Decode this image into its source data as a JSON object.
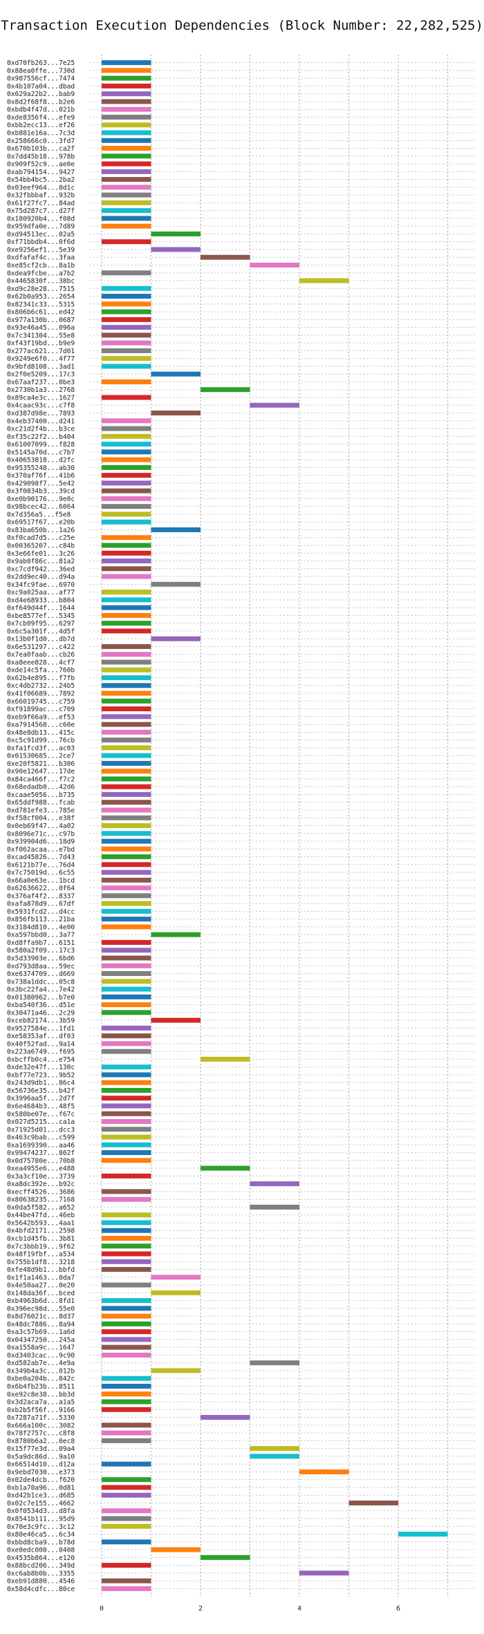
{
  "chart_data": {
    "type": "bar",
    "orientation": "horizontal",
    "title": "Transaction Execution Dependencies (Block Number: 22,282,525)",
    "xlabel": "",
    "ylabel": "",
    "xlim": [
      0,
      7.5
    ],
    "xticks": [
      0,
      2,
      4,
      6
    ],
    "grid": true,
    "palette": [
      "#1f77b4",
      "#ff7f0e",
      "#2ca02c",
      "#d62728",
      "#9467bd",
      "#8c564b",
      "#e377c2",
      "#7f7f7f",
      "#bcbd22",
      "#17becf"
    ],
    "transactions": [
      {
        "tx": "0xd70fb263...7e25",
        "start": 0
      },
      {
        "tx": "0x88ea0ffe...730d",
        "start": 0
      },
      {
        "tx": "0x987556cf...7474",
        "start": 0
      },
      {
        "tx": "0x4b107a04...dbad",
        "start": 0
      },
      {
        "tx": "0x629a22b2...bab9",
        "start": 0
      },
      {
        "tx": "0x8d2f68f8...b2e6",
        "start": 0
      },
      {
        "tx": "0xbdb4f47d...021b",
        "start": 0
      },
      {
        "tx": "0xde8356f4...efe9",
        "start": 0
      },
      {
        "tx": "0xbb2ecc13...ef26",
        "start": 0
      },
      {
        "tx": "0xb881e16a...7c3d",
        "start": 0
      },
      {
        "tx": "0x258666c0...3fd7",
        "start": 0
      },
      {
        "tx": "0x670b103b...ca2f",
        "start": 0
      },
      {
        "tx": "0x7dd45b18...978b",
        "start": 0
      },
      {
        "tx": "0x909f52c9...ae0e",
        "start": 0
      },
      {
        "tx": "0xab794154...9427",
        "start": 0
      },
      {
        "tx": "0x54bb4bc5...2ba2",
        "start": 0
      },
      {
        "tx": "0x03eef964...0d1c",
        "start": 0
      },
      {
        "tx": "0x32fbbbaf...932b",
        "start": 0
      },
      {
        "tx": "0x61f27fc7...84ad",
        "start": 0
      },
      {
        "tx": "0x75d287c7...d27f",
        "start": 0
      },
      {
        "tx": "0x180920b4...f08d",
        "start": 0
      },
      {
        "tx": "0x959dfa0e...7d89",
        "start": 0
      },
      {
        "tx": "0xd94513ec...02a5",
        "start": 1
      },
      {
        "tx": "0xf71bbdb4...0f6d",
        "start": 0
      },
      {
        "tx": "0xe9256ef1...5e39",
        "start": 1
      },
      {
        "tx": "0xdfafaf4c...3faa",
        "start": 2
      },
      {
        "tx": "0xe85cf2cb...8a1b",
        "start": 3
      },
      {
        "tx": "0xdea9fcbe...a7b2",
        "start": 0
      },
      {
        "tx": "0x4465830f...38bc",
        "start": 4
      },
      {
        "tx": "0xd9c28e28...7515",
        "start": 0
      },
      {
        "tx": "0x62b0a953...2654",
        "start": 0
      },
      {
        "tx": "0x82341c33...5315",
        "start": 0
      },
      {
        "tx": "0x806b6c61...ed42",
        "start": 0
      },
      {
        "tx": "0x977a130b...0687",
        "start": 0
      },
      {
        "tx": "0x93e46a45...096a",
        "start": 0
      },
      {
        "tx": "0x7c341304...55e8",
        "start": 0
      },
      {
        "tx": "0xf43f19bd...b9e9",
        "start": 0
      },
      {
        "tx": "0x277ac621...7d01",
        "start": 0
      },
      {
        "tx": "0x9249e6f0...4f77",
        "start": 0
      },
      {
        "tx": "0x9bfd8108...3ad1",
        "start": 0
      },
      {
        "tx": "0x2f0e5209...17c3",
        "start": 1
      },
      {
        "tx": "0x67aaf237...0be3",
        "start": 0
      },
      {
        "tx": "0x2730b1a3...2768",
        "start": 2
      },
      {
        "tx": "0x89ca4e3c...1627",
        "start": 0
      },
      {
        "tx": "0x4caac93c...c7f8",
        "start": 3
      },
      {
        "tx": "0xd387d98e...7893",
        "start": 1
      },
      {
        "tx": "0x4eb37400...d241",
        "start": 0
      },
      {
        "tx": "0xc21d2f4b...b3ce",
        "start": 0
      },
      {
        "tx": "0xf35c22f2...b404",
        "start": 0
      },
      {
        "tx": "0x61007099...f828",
        "start": 0
      },
      {
        "tx": "0x5145a70d...c7b7",
        "start": 0
      },
      {
        "tx": "0x40653818...d2fc",
        "start": 0
      },
      {
        "tx": "0x95355248...ab30",
        "start": 0
      },
      {
        "tx": "0x370af76f...41b6",
        "start": 0
      },
      {
        "tx": "0x429098f7...5e42",
        "start": 0
      },
      {
        "tx": "0x3f0834b3...39cd",
        "start": 0
      },
      {
        "tx": "0xe0b90176...9e0c",
        "start": 0
      },
      {
        "tx": "0x98bcec42...6064",
        "start": 0
      },
      {
        "tx": "0x7d356a5...f5e8",
        "start": 0
      },
      {
        "tx": "0x69517f67...e20b",
        "start": 0
      },
      {
        "tx": "0x83ba650b...1a26",
        "start": 1
      },
      {
        "tx": "0xf0cad7d5...c25e",
        "start": 0
      },
      {
        "tx": "0x00365207...c84b",
        "start": 0
      },
      {
        "tx": "0x3e66fe01...3c26",
        "start": 0
      },
      {
        "tx": "0x9ab0f86c...81a2",
        "start": 0
      },
      {
        "tx": "0xc7cdf942...36ed",
        "start": 0
      },
      {
        "tx": "0x2dd9ec40...d94a",
        "start": 0
      },
      {
        "tx": "0x34fc9fae...6970",
        "start": 1
      },
      {
        "tx": "0xc9a025aa...af77",
        "start": 0
      },
      {
        "tx": "0xd4e68933...b804",
        "start": 0
      },
      {
        "tx": "0xf649d44f...1644",
        "start": 0
      },
      {
        "tx": "0xbe8577ef...5345",
        "start": 0
      },
      {
        "tx": "0x7cb09f95...6297",
        "start": 0
      },
      {
        "tx": "0x6c5a301f...4d5f",
        "start": 0
      },
      {
        "tx": "0x13b0f1d0...db7d",
        "start": 1
      },
      {
        "tx": "0x6e531297...c422",
        "start": 0
      },
      {
        "tx": "0x7ea0faab...cb26",
        "start": 0
      },
      {
        "tx": "0xa8eee828...4cf7",
        "start": 0
      },
      {
        "tx": "0xde14c5fa...760b",
        "start": 0
      },
      {
        "tx": "0x62b4e895...f7fb",
        "start": 0
      },
      {
        "tx": "0xc4db2732...24b5",
        "start": 0
      },
      {
        "tx": "0x41f06689...7892",
        "start": 0
      },
      {
        "tx": "0x66019745...c759",
        "start": 0
      },
      {
        "tx": "0xf91899ac...c709",
        "start": 0
      },
      {
        "tx": "0xeb9f66a9...ef53",
        "start": 0
      },
      {
        "tx": "0xa7914568...c60e",
        "start": 0
      },
      {
        "tx": "0x48e8db13...415c",
        "start": 0
      },
      {
        "tx": "0xc5c91d99...76cb",
        "start": 0
      },
      {
        "tx": "0xfa1fcd3f...ac03",
        "start": 0
      },
      {
        "tx": "0x01530685...2ce7",
        "start": 0
      },
      {
        "tx": "0xe20f5821...b306",
        "start": 0
      },
      {
        "tx": "0x90e12647...17de",
        "start": 0
      },
      {
        "tx": "0x84ca466f...f7c2",
        "start": 0
      },
      {
        "tx": "0x68edadb0...42d6",
        "start": 0
      },
      {
        "tx": "0xcaae5056...b735",
        "start": 0
      },
      {
        "tx": "0x65ddf988...fcab",
        "start": 0
      },
      {
        "tx": "0xd781efe3...785e",
        "start": 0
      },
      {
        "tx": "0xf58cf004...e38f",
        "start": 0
      },
      {
        "tx": "0x0eb69f47...4a02",
        "start": 0
      },
      {
        "tx": "0x8096e71c...c97b",
        "start": 0
      },
      {
        "tx": "0x939904d6...18d9",
        "start": 0
      },
      {
        "tx": "0xf062acaa...e7bd",
        "start": 0
      },
      {
        "tx": "0xcad45826...7d43",
        "start": 0
      },
      {
        "tx": "0x6121b77e...76d4",
        "start": 0
      },
      {
        "tx": "0x7c75019d...6c55",
        "start": 0
      },
      {
        "tx": "0x66a0e63e...1bcd",
        "start": 0
      },
      {
        "tx": "0x62636622...0f64",
        "start": 0
      },
      {
        "tx": "0x376af4f2...8337",
        "start": 0
      },
      {
        "tx": "0xafa878d9...67df",
        "start": 0
      },
      {
        "tx": "0x5931fcd2...d4cc",
        "start": 0
      },
      {
        "tx": "0x856fb113...21ba",
        "start": 0
      },
      {
        "tx": "0x3184d810...4e00",
        "start": 0
      },
      {
        "tx": "0xa597bbd0...3a77",
        "start": 1
      },
      {
        "tx": "0xd8ffa9b7...6151",
        "start": 0
      },
      {
        "tx": "0x580a2f09...17c3",
        "start": 0
      },
      {
        "tx": "0x5d33903e...6bd6",
        "start": 0
      },
      {
        "tx": "0xd793d8aa...59ec",
        "start": 0
      },
      {
        "tx": "0xe6374709...d669",
        "start": 0
      },
      {
        "tx": "0x738a1ddc...05c8",
        "start": 0
      },
      {
        "tx": "0x3bc22fa4...7e42",
        "start": 0
      },
      {
        "tx": "0x01380962...b7e0",
        "start": 0
      },
      {
        "tx": "0xba540f36...d51e",
        "start": 0
      },
      {
        "tx": "0x30471a46...2c29",
        "start": 0
      },
      {
        "tx": "0xceb82174...3b59",
        "start": 1
      },
      {
        "tx": "0x9527584e...1fd1",
        "start": 0
      },
      {
        "tx": "0xe58353af...df03",
        "start": 0
      },
      {
        "tx": "0x40f52fad...9a14",
        "start": 0
      },
      {
        "tx": "0x223a6749...f695",
        "start": 0
      },
      {
        "tx": "0xbcffb0c4...e754",
        "start": 2
      },
      {
        "tx": "0xde32e47f...130c",
        "start": 0
      },
      {
        "tx": "0xbf77e723...9b52",
        "start": 0
      },
      {
        "tx": "0x243d9db1...86c4",
        "start": 0
      },
      {
        "tx": "0x56736e35...b42f",
        "start": 0
      },
      {
        "tx": "0x3996aa5f...2d7f",
        "start": 0
      },
      {
        "tx": "0x6e4684b3...48f5",
        "start": 0
      },
      {
        "tx": "0x580be07e...f67c",
        "start": 0
      },
      {
        "tx": "0x027d5215...ca1a",
        "start": 0
      },
      {
        "tx": "0x71925d01...dcc3",
        "start": 0
      },
      {
        "tx": "0x463c9bab...c599",
        "start": 0
      },
      {
        "tx": "0xa1699390...aa46",
        "start": 0
      },
      {
        "tx": "0x99474237...862f",
        "start": 0
      },
      {
        "tx": "0x0d75780e...70b8",
        "start": 0
      },
      {
        "tx": "0xea4955e6...e488",
        "start": 2
      },
      {
        "tx": "0x3a3cf10e...3739",
        "start": 0
      },
      {
        "tx": "0xa8dc392e...b92c",
        "start": 3
      },
      {
        "tx": "0xecff4526...3686",
        "start": 0
      },
      {
        "tx": "0x80638235...7168",
        "start": 0
      },
      {
        "tx": "0x0da5f582...a652",
        "start": 3
      },
      {
        "tx": "0x44be47fd...46eb",
        "start": 0
      },
      {
        "tx": "0x5642b593...4aa1",
        "start": 0
      },
      {
        "tx": "0x4bfd2171...2598",
        "start": 0
      },
      {
        "tx": "0xcb1d45fb...3b81",
        "start": 0
      },
      {
        "tx": "0x7c3bbb19...9f62",
        "start": 0
      },
      {
        "tx": "0x48f19fbf...a534",
        "start": 0
      },
      {
        "tx": "0x755b1df8...3218",
        "start": 0
      },
      {
        "tx": "0xfe48d9b1...bbfd",
        "start": 0
      },
      {
        "tx": "0x1f1a1463...0da7",
        "start": 1
      },
      {
        "tx": "0x4e50aa27...0e20",
        "start": 0
      },
      {
        "tx": "0x148da36f...bced",
        "start": 1
      },
      {
        "tx": "0xb4963b6d...8fd1",
        "start": 0
      },
      {
        "tx": "0x396ec98d...55e0",
        "start": 0
      },
      {
        "tx": "0x8d76021c...8d37",
        "start": 0
      },
      {
        "tx": "0x48dc7886...8a94",
        "start": 0
      },
      {
        "tx": "0xa3c57b69...1a6d",
        "start": 0
      },
      {
        "tx": "0x04347250...245a",
        "start": 0
      },
      {
        "tx": "0xa1558a9c...1647",
        "start": 0
      },
      {
        "tx": "0xd3403cac...9c90",
        "start": 0
      },
      {
        "tx": "0xd582ab7e...4e9a",
        "start": 3
      },
      {
        "tx": "0x349b4a3c...012b",
        "start": 1
      },
      {
        "tx": "0xbe0a204b...842c",
        "start": 0
      },
      {
        "tx": "0x6b4fb23b...8511",
        "start": 0
      },
      {
        "tx": "0xe92c8e38...bb3d",
        "start": 0
      },
      {
        "tx": "0x3d2aca7a...a1a5",
        "start": 0
      },
      {
        "tx": "0xb2b5f56f...9166",
        "start": 0
      },
      {
        "tx": "0x7287a71f...5330",
        "start": 2
      },
      {
        "tx": "0x666a100c...3082",
        "start": 0
      },
      {
        "tx": "0x78f2757c...c8f8",
        "start": 0
      },
      {
        "tx": "0x8780b6a2...0ec8",
        "start": 0
      },
      {
        "tx": "0x15f77e3d...09a4",
        "start": 3
      },
      {
        "tx": "0x5a9dc86d...9a10",
        "start": 3
      },
      {
        "tx": "0x66514d10...d12a",
        "start": 0
      },
      {
        "tx": "0x9ebd7030...e373",
        "start": 4
      },
      {
        "tx": "0x02de4dcb...f620",
        "start": 0
      },
      {
        "tx": "0xb1a70a96...0d81",
        "start": 0
      },
      {
        "tx": "0xd42b1ce3...d685",
        "start": 0
      },
      {
        "tx": "0x02c7e155...4662",
        "start": 5
      },
      {
        "tx": "0x0f0534d3...d8fa",
        "start": 0
      },
      {
        "tx": "0x8541b111...95d9",
        "start": 0
      },
      {
        "tx": "0x70e3c9fc...3c12",
        "start": 0
      },
      {
        "tx": "0x80e46ca5...6c34",
        "start": 6
      },
      {
        "tx": "0xbbd8cba9...b78d",
        "start": 0
      },
      {
        "tx": "0xe0edc000...0408",
        "start": 1
      },
      {
        "tx": "0x4535b864...e120",
        "start": 2
      },
      {
        "tx": "0x88bcd206...349d",
        "start": 0
      },
      {
        "tx": "0xc6ab8b0b...3355",
        "start": 4
      },
      {
        "tx": "0xeb91d880...4546",
        "start": 0
      },
      {
        "tx": "0x58d4cdfc...80ce",
        "start": 0
      }
    ]
  }
}
